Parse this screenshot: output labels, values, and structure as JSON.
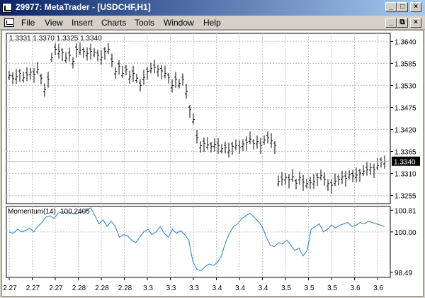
{
  "window": {
    "title": "29977: MetaTrader - [USDCHF,H1]",
    "controls": {
      "minimize": "_",
      "maximize": "□",
      "close": "×"
    }
  },
  "menubar": {
    "items": [
      "File",
      "View",
      "Insert",
      "Charts",
      "Tools",
      "Window",
      "Help"
    ],
    "doc_controls": {
      "minimize": "_",
      "restore": "⧉",
      "close": "×"
    }
  },
  "chart": {
    "ohlc_header": "1.3331 1.3370 1.3325 1.3340",
    "current_price_label": "1.3340",
    "current_price": 1.334,
    "price_ticks": [
      "1.3640",
      "1.3585",
      "1.3530",
      "1.3475",
      "1.3420",
      "1.3365",
      "1.3310",
      "1.3255"
    ],
    "x_ticks": [
      "2.27",
      "2.27",
      "2.27",
      "2.28",
      "2.28",
      "2.28",
      "3.3",
      "3.3",
      "3.3",
      "3.4",
      "3.4",
      "3.4",
      "3.5",
      "3.5",
      "3.5",
      "3.6",
      "3.6"
    ],
    "indicator": {
      "name": "Momentum(14)",
      "value": "100.2405",
      "ticks": [
        "100.81",
        "100.00",
        "98.49"
      ]
    },
    "colors": {
      "bars": "#000000",
      "momentum": "#1e7fd0",
      "grid": "#c0c0c0"
    }
  },
  "chart_data": {
    "type": "line",
    "title": "",
    "price_range": [
      1.3235,
      1.366
    ],
    "momentum_range": [
      98.3,
      100.95
    ],
    "price_series": [
      1.3555,
      1.3548,
      1.3552,
      1.356,
      1.3549,
      1.3556,
      1.3563,
      1.3558,
      1.357,
      1.3548,
      1.352,
      1.3545,
      1.36,
      1.362,
      1.3615,
      1.3612,
      1.3598,
      1.3605,
      1.359,
      1.362,
      1.3618,
      1.3614,
      1.361,
      1.3615,
      1.3612,
      1.3605,
      1.36,
      1.3615,
      1.362,
      1.359,
      1.3565,
      1.3578,
      1.356,
      1.357,
      1.3552,
      1.356,
      1.3548,
      1.353,
      1.355,
      1.3565,
      1.3572,
      1.3575,
      1.357,
      1.3566,
      1.356,
      1.355,
      1.353,
      1.3545,
      1.3535,
      1.3545,
      1.3515,
      1.347,
      1.3445,
      1.34,
      1.338,
      1.3385,
      1.3382,
      1.3378,
      1.3383,
      1.338,
      1.3372,
      1.3375,
      1.3368,
      1.3378,
      1.338,
      1.3374,
      1.3384,
      1.3388,
      1.3396,
      1.3385,
      1.339,
      1.338,
      1.3394,
      1.34,
      1.3392,
      1.338,
      1.329,
      1.3295,
      1.33,
      1.3294,
      1.3302,
      1.3286,
      1.33,
      1.3288,
      1.3285,
      1.3287,
      1.329,
      1.33,
      1.3305,
      1.3295,
      1.3285,
      1.3281,
      1.3291,
      1.3296,
      1.3302,
      1.3298,
      1.3307,
      1.3304,
      1.3306,
      1.3311,
      1.3316,
      1.332,
      1.3325,
      1.332,
      1.333,
      1.334,
      1.334
    ],
    "momentum_series": [
      100.0,
      99.95,
      100.1,
      100.0,
      100.05,
      100.15,
      100.0,
      100.2,
      100.35,
      100.55,
      100.6,
      100.5,
      100.7,
      100.75,
      100.7,
      100.72,
      100.68,
      100.7,
      100.75,
      100.8,
      100.9,
      100.6,
      100.3,
      100.45,
      100.2,
      100.4,
      100.2,
      99.8,
      99.9,
      99.85,
      99.7,
      99.6,
      99.8,
      100.0,
      100.1,
      99.9,
      100.0,
      100.2,
      99.95,
      99.8,
      100.1,
      99.95,
      100.05,
      99.9,
      99.7,
      98.9,
      98.6,
      98.55,
      98.7,
      98.8,
      98.75,
      98.85,
      99.1,
      99.6,
      99.95,
      100.2,
      100.3,
      100.5,
      100.6,
      100.7,
      100.55,
      100.4,
      100.2,
      99.8,
      99.5,
      99.45,
      99.6,
      99.55,
      99.7,
      99.5,
      99.3,
      99.4,
      99.1,
      99.3,
      100.1,
      100.2,
      100.3,
      100.0,
      100.1,
      100.25,
      100.15,
      100.25,
      100.3,
      100.35,
      100.2,
      100.25,
      100.35,
      100.3,
      100.4,
      100.35,
      100.3,
      100.25,
      100.2
    ]
  }
}
